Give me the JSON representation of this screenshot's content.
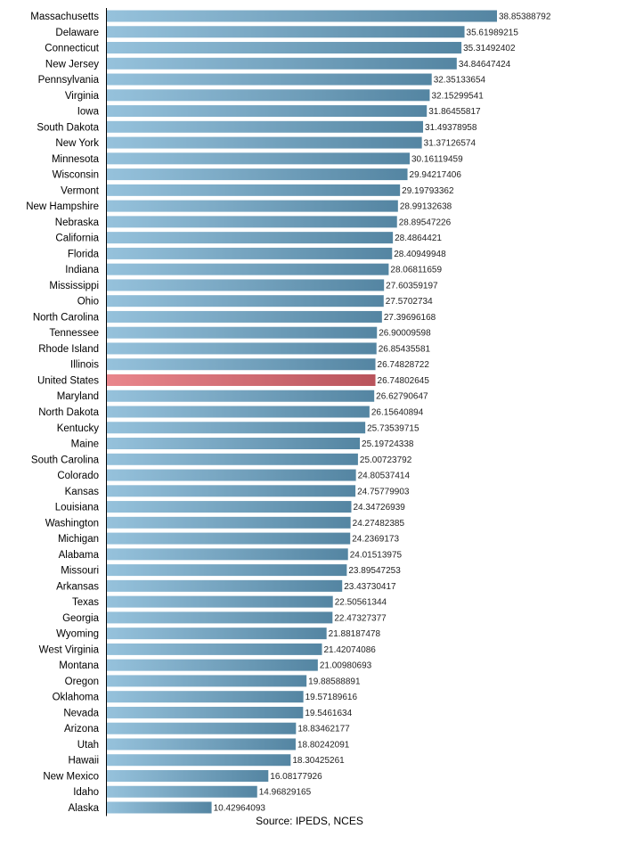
{
  "chart_data": {
    "type": "bar",
    "orientation": "horizontal",
    "categories": [
      "Massachusetts",
      "Delaware",
      "Connecticut",
      "New Jersey",
      "Pennsylvania",
      "Virginia",
      "Iowa",
      "South Dakota",
      "New York",
      "Minnesota",
      "Wisconsin",
      "Vermont",
      "New Hampshire",
      "Nebraska",
      "California",
      "Florida",
      "Indiana",
      "Mississippi",
      "Ohio",
      "North Carolina",
      "Tennessee",
      "Rhode Island",
      "Illinois",
      "United States",
      "Maryland",
      "North Dakota",
      "Kentucky",
      "Maine",
      "South Carolina",
      "Colorado",
      "Kansas",
      "Louisiana",
      "Washington",
      "Michigan",
      "Alabama",
      "Missouri",
      "Arkansas",
      "Texas",
      "Georgia",
      "Wyoming",
      "West Virginia",
      "Montana",
      "Oregon",
      "Oklahoma",
      "Nevada",
      "Arizona",
      "Utah",
      "Hawaii",
      "New Mexico",
      "Idaho",
      "Alaska"
    ],
    "values": [
      38.85388792,
      35.61989215,
      35.31492402,
      34.84647424,
      32.35133654,
      32.15299541,
      31.86455817,
      31.49378958,
      31.37126574,
      30.16119459,
      29.94217406,
      29.19793362,
      28.99132638,
      28.89547226,
      28.4864421,
      28.40949948,
      28.06811659,
      27.60359197,
      27.5702734,
      27.39696168,
      26.90009598,
      26.85435581,
      26.74828722,
      26.74802645,
      26.62790647,
      26.15640894,
      25.73539715,
      25.19724338,
      25.00723792,
      24.80537414,
      24.75779903,
      24.34726939,
      24.27482385,
      24.2369173,
      24.01513975,
      23.89547253,
      23.43730417,
      22.50561344,
      22.47327377,
      21.88187478,
      21.42074086,
      21.00980693,
      19.88588891,
      19.57189616,
      19.5461634,
      18.83462177,
      18.80242091,
      18.30425261,
      16.08177926,
      14.96829165,
      10.42964093
    ],
    "value_labels": [
      "38.85388792",
      "35.61989215",
      "35.31492402",
      "34.84647424",
      "32.35133654",
      "32.15299541",
      "31.86455817",
      "31.49378958",
      "31.37126574",
      "30.16119459",
      "29.94217406",
      "29.19793362",
      "28.99132638",
      "28.89547226",
      "28.4864421",
      "28.40949948",
      "28.06811659",
      "27.60359197",
      "27.5702734",
      "27.39696168",
      "26.90009598",
      "26.85435581",
      "26.74828722",
      "26.74802645",
      "26.62790647",
      "26.15640894",
      "25.73539715",
      "25.19724338",
      "25.00723792",
      "24.80537414",
      "24.75779903",
      "24.34726939",
      "24.27482385",
      "24.2369173",
      "24.01513975",
      "23.89547253",
      "23.43730417",
      "22.50561344",
      "22.47327377",
      "21.88187478",
      "21.42074086",
      "21.00980693",
      "19.88588891",
      "19.57189616",
      "19.5461634",
      "18.83462177",
      "18.80242091",
      "18.30425261",
      "16.08177926",
      "14.96829165",
      "10.42964093"
    ],
    "highlight_category": "United States",
    "xlim": [
      0,
      38.85388792
    ],
    "grid": false,
    "colors": {
      "bar_light": "#96c2dc",
      "bar_dark": "#5485a2",
      "highlight_light": "#e9868c",
      "highlight_dark": "#b9545c",
      "axis": "#000000"
    }
  },
  "source": "Source: IPEDS, NCES"
}
